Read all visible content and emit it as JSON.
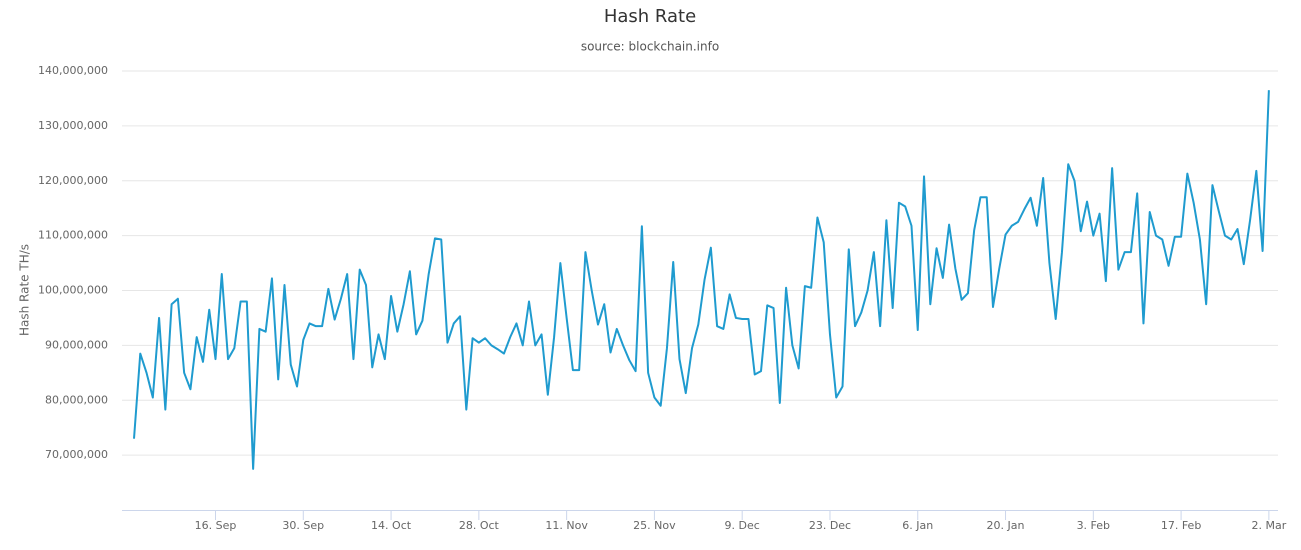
{
  "chart_data": {
    "type": "line",
    "title": "Hash Rate",
    "subtitle": "source: blockchain.info",
    "y_label": "Hash Rate TH/s",
    "color": "#1f9bcf",
    "grid": true,
    "categories": [
      null,
      null,
      null,
      null,
      null,
      null,
      null,
      null,
      null,
      null,
      null,
      null,
      null,
      "16. Sep",
      null,
      null,
      null,
      null,
      null,
      null,
      null,
      null,
      null,
      null,
      null,
      null,
      null,
      "30. Sep",
      null,
      null,
      null,
      null,
      null,
      null,
      null,
      null,
      null,
      null,
      null,
      null,
      null,
      "14. Oct",
      null,
      null,
      null,
      null,
      null,
      null,
      null,
      null,
      null,
      null,
      null,
      null,
      null,
      "28. Oct",
      null,
      null,
      null,
      null,
      null,
      null,
      null,
      null,
      null,
      null,
      null,
      null,
      null,
      "11. Nov",
      null,
      null,
      null,
      null,
      null,
      null,
      null,
      null,
      null,
      null,
      null,
      null,
      null,
      "25. Nov",
      null,
      null,
      null,
      null,
      null,
      null,
      null,
      null,
      null,
      null,
      null,
      null,
      null,
      "9. Dec",
      null,
      null,
      null,
      null,
      null,
      null,
      null,
      null,
      null,
      null,
      null,
      null,
      null,
      "23. Dec",
      null,
      null,
      null,
      null,
      null,
      null,
      null,
      null,
      null,
      null,
      null,
      null,
      null,
      "6. Jan",
      null,
      null,
      null,
      null,
      null,
      null,
      null,
      null,
      null,
      null,
      null,
      null,
      null,
      "20. Jan",
      null,
      null,
      null,
      null,
      null,
      null,
      null,
      null,
      null,
      null,
      null,
      null,
      null,
      "3. Feb",
      null,
      null,
      null,
      null,
      null,
      null,
      null,
      null,
      null,
      null,
      null,
      null,
      null,
      "17. Feb",
      null,
      null,
      null,
      null,
      null,
      null,
      null,
      null,
      null,
      null,
      null,
      null,
      null,
      "2. Mar"
    ],
    "values": [
      73000000,
      88500000,
      85000000,
      80500000,
      95000000,
      78300000,
      97500000,
      98500000,
      85000000,
      82000000,
      91500000,
      87000000,
      96500000,
      87500000,
      103000000,
      87500000,
      89500000,
      98000000,
      98000000,
      67500000,
      93000000,
      92500000,
      102200000,
      83800000,
      101000000,
      86500000,
      82500000,
      91000000,
      94000000,
      93500000,
      93500000,
      100300000,
      94700000,
      98500000,
      103000000,
      87500000,
      103800000,
      101000000,
      86000000,
      92000000,
      87500000,
      99000000,
      92500000,
      97500000,
      103500000,
      92000000,
      94500000,
      103000000,
      109500000,
      109300000,
      90500000,
      94000000,
      95300000,
      78300000,
      91300000,
      90500000,
      91300000,
      90000000,
      89300000,
      88500000,
      91500000,
      94000000,
      90000000,
      98000000,
      90000000,
      92000000,
      81000000,
      91500000,
      105000000,
      95000000,
      85500000,
      85500000,
      107000000,
      100000000,
      93800000,
      97500000,
      88700000,
      93000000,
      90000000,
      87300000,
      85300000,
      111700000,
      85000000,
      80500000,
      79000000,
      89500000,
      105200000,
      87500000,
      81300000,
      89500000,
      93800000,
      102000000,
      107800000,
      93500000,
      93000000,
      99300000,
      95000000,
      94800000,
      94800000,
      84700000,
      85300000,
      97300000,
      96800000,
      79500000,
      100500000,
      90000000,
      85800000,
      100800000,
      100500000,
      113300000,
      108800000,
      92000000,
      80500000,
      82500000,
      107500000,
      93500000,
      96000000,
      100000000,
      107000000,
      93500000,
      112800000,
      96800000,
      116000000,
      115300000,
      111800000,
      92800000,
      120800000,
      97500000,
      107700000,
      102300000,
      112000000,
      104000000,
      98300000,
      99500000,
      111000000,
      117000000,
      117000000,
      97000000,
      104000000,
      110200000,
      111800000,
      112500000,
      114800000,
      116900000,
      111800000,
      120500000,
      105000000,
      94800000,
      107000000,
      123000000,
      120000000,
      110800000,
      116200000,
      110000000,
      114000000,
      101700000,
      122300000,
      103800000,
      107000000,
      107000000,
      117700000,
      94000000,
      114300000,
      110000000,
      109300000,
      104500000,
      109800000,
      109800000,
      121300000,
      116000000,
      109300000,
      97500000,
      119200000,
      114500000,
      110000000,
      109300000,
      111200000,
      104800000,
      112800000,
      121800000,
      107200000,
      136500000
    ],
    "ylim": [
      60000000,
      140000000
    ],
    "yticks": [
      {
        "value": 70000000,
        "label": "70,000,000"
      },
      {
        "value": 80000000,
        "label": "80,000,000"
      },
      {
        "value": 90000000,
        "label": "90,000,000"
      },
      {
        "value": 100000000,
        "label": "100,000,000"
      },
      {
        "value": 110000000,
        "label": "110,000,000"
      },
      {
        "value": 120000000,
        "label": "120,000,000"
      },
      {
        "value": 130000000,
        "label": "130,000,000"
      },
      {
        "value": 140000000,
        "label": "140,000,000"
      }
    ]
  }
}
